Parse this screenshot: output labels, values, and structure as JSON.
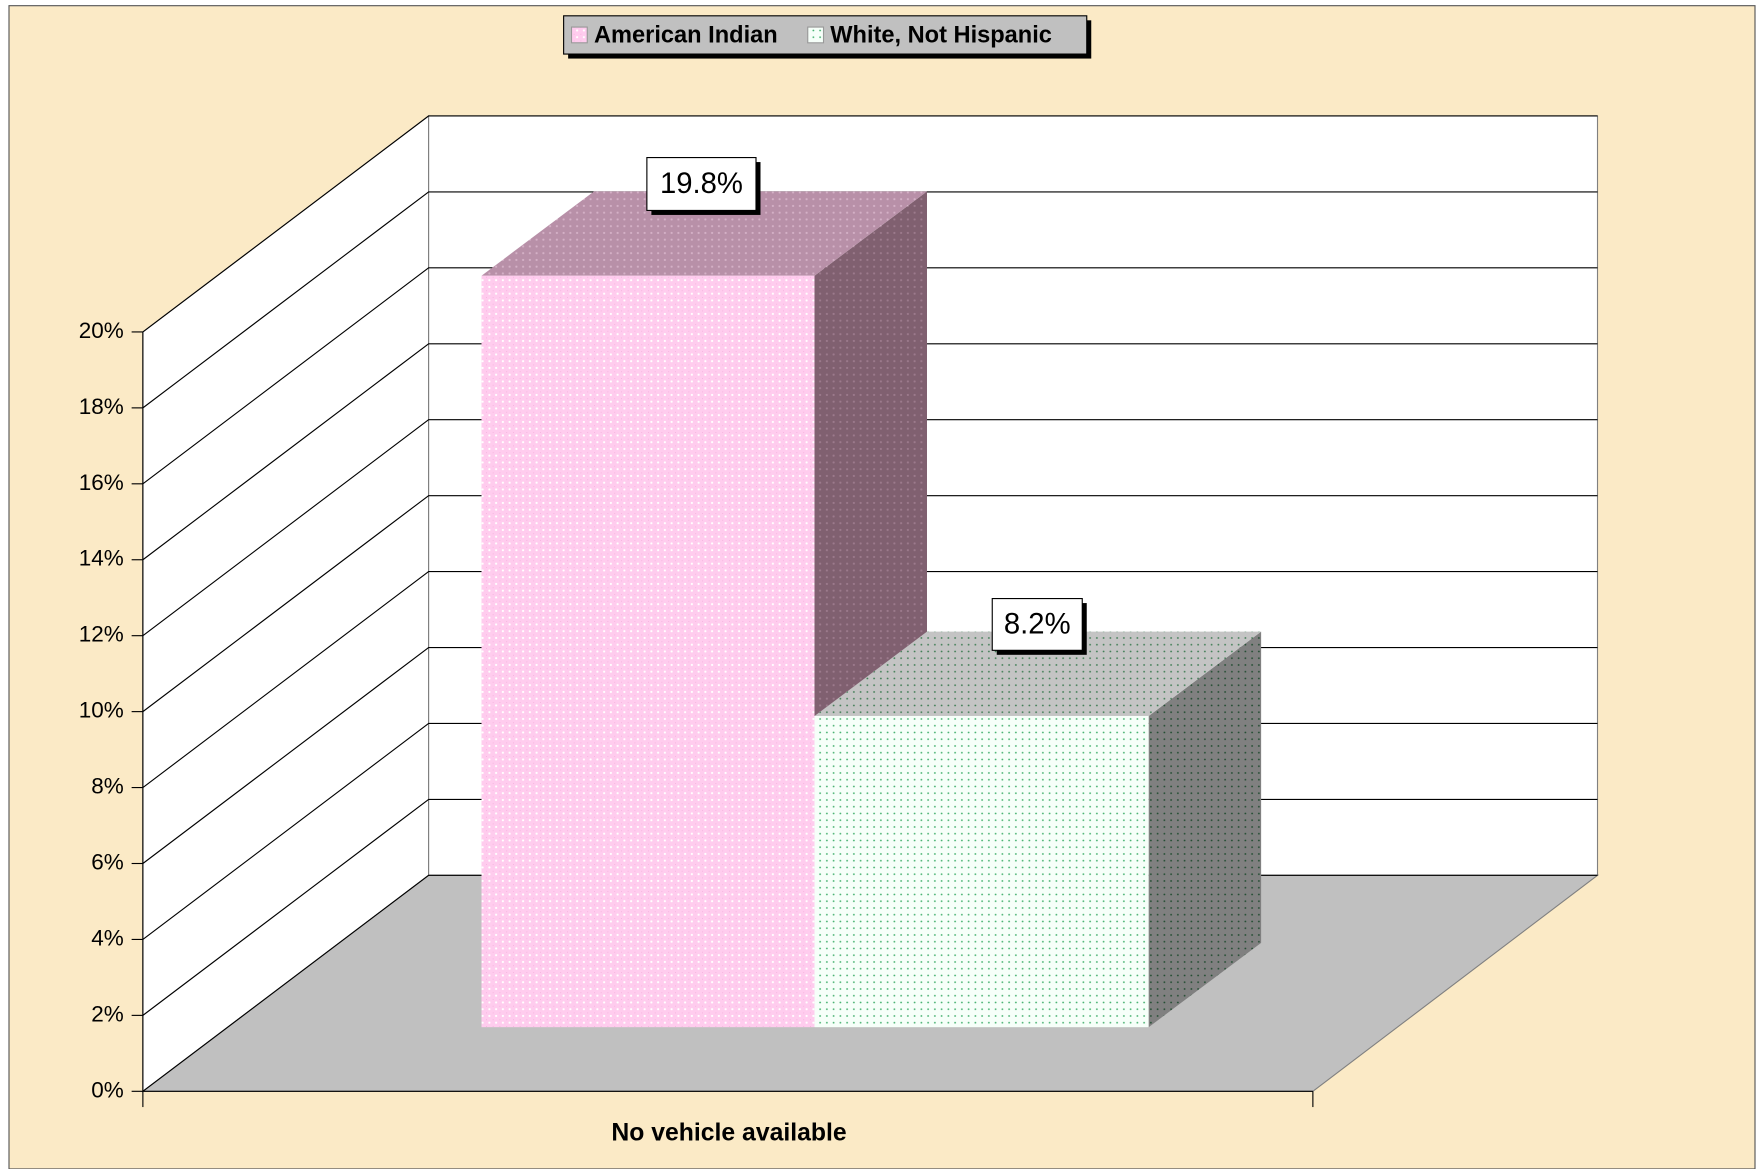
{
  "chart_data": {
    "type": "bar3d",
    "categories": [
      "No vehicle available"
    ],
    "series": [
      {
        "name": "American Indian",
        "color": "#ffccee",
        "values": [
          19.8
        ],
        "value_labels": [
          "19.8%"
        ]
      },
      {
        "name": "White, Not Hispanic",
        "color": "#f2fff6",
        "values": [
          8.2
        ],
        "value_labels": [
          "8.2%"
        ]
      }
    ],
    "ylim": [
      0,
      20
    ],
    "yticks": [
      {
        "value": 0,
        "label": "0%"
      },
      {
        "value": 2,
        "label": "2%"
      },
      {
        "value": 4,
        "label": "4%"
      },
      {
        "value": 6,
        "label": "6%"
      },
      {
        "value": 8,
        "label": "8%"
      },
      {
        "value": 10,
        "label": "10%"
      },
      {
        "value": 12,
        "label": "12%"
      },
      {
        "value": 14,
        "label": "14%"
      },
      {
        "value": 16,
        "label": "16%"
      },
      {
        "value": 18,
        "label": "18%"
      },
      {
        "value": 20,
        "label": "20%"
      }
    ],
    "grid": true,
    "legend": "top"
  }
}
